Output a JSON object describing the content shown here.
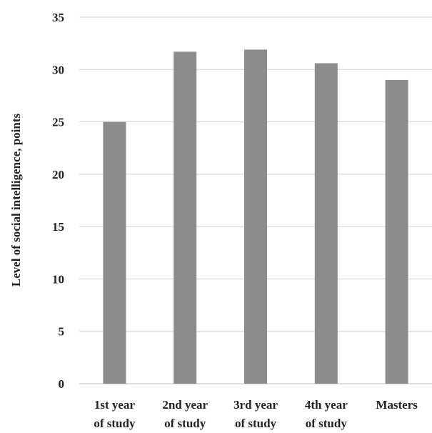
{
  "chart_data": {
    "type": "bar",
    "categories": [
      [
        "1st year",
        "of study"
      ],
      [
        "2nd year",
        "of study"
      ],
      [
        "3rd year",
        "of study"
      ],
      [
        "4th year",
        "of study"
      ],
      [
        "Masters"
      ]
    ],
    "values": [
      25.0,
      31.7,
      31.9,
      30.6,
      29.0
    ],
    "ylabel": "Level of social intelligence, points",
    "xlabel": "",
    "title": "",
    "ylim": [
      0,
      35
    ],
    "yticks": [
      0,
      5,
      10,
      15,
      20,
      25,
      30,
      35
    ],
    "grid": true,
    "bar_color": "#8c8c8c"
  }
}
